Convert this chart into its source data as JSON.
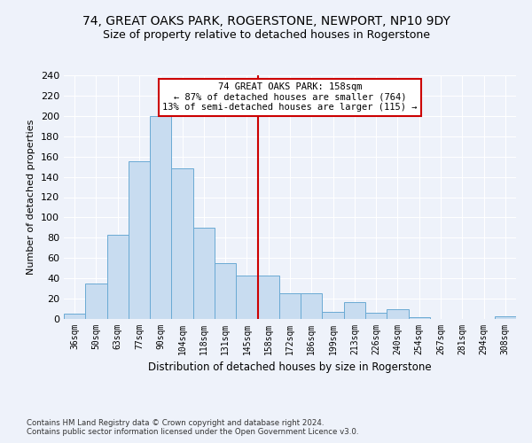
{
  "title": "74, GREAT OAKS PARK, ROGERSTONE, NEWPORT, NP10 9DY",
  "subtitle": "Size of property relative to detached houses in Rogerstone",
  "xlabel": "Distribution of detached houses by size in Rogerstone",
  "ylabel": "Number of detached properties",
  "categories": [
    "36sqm",
    "50sqm",
    "63sqm",
    "77sqm",
    "90sqm",
    "104sqm",
    "118sqm",
    "131sqm",
    "145sqm",
    "158sqm",
    "172sqm",
    "186sqm",
    "199sqm",
    "213sqm",
    "226sqm",
    "240sqm",
    "254sqm",
    "267sqm",
    "281sqm",
    "294sqm",
    "308sqm"
  ],
  "values": [
    5,
    35,
    83,
    155,
    200,
    148,
    90,
    55,
    43,
    43,
    25,
    25,
    7,
    17,
    6,
    10,
    2,
    0,
    0,
    0,
    3
  ],
  "bar_color": "#c8dcf0",
  "bar_edge_color": "#6aaad4",
  "vline_index": 9,
  "vline_color": "#cc0000",
  "annotation_text": "74 GREAT OAKS PARK: 158sqm\n← 87% of detached houses are smaller (764)\n13% of semi-detached houses are larger (115) →",
  "annotation_box_color": "#ffffff",
  "annotation_box_edge": "#cc0000",
  "footnote1": "Contains HM Land Registry data © Crown copyright and database right 2024.",
  "footnote2": "Contains public sector information licensed under the Open Government Licence v3.0.",
  "background_color": "#eef2fa",
  "ylim": [
    0,
    240
  ],
  "yticks": [
    0,
    20,
    40,
    60,
    80,
    100,
    120,
    140,
    160,
    180,
    200,
    220,
    240
  ],
  "grid_color": "#ffffff",
  "title_fontsize": 10,
  "subtitle_fontsize": 9
}
